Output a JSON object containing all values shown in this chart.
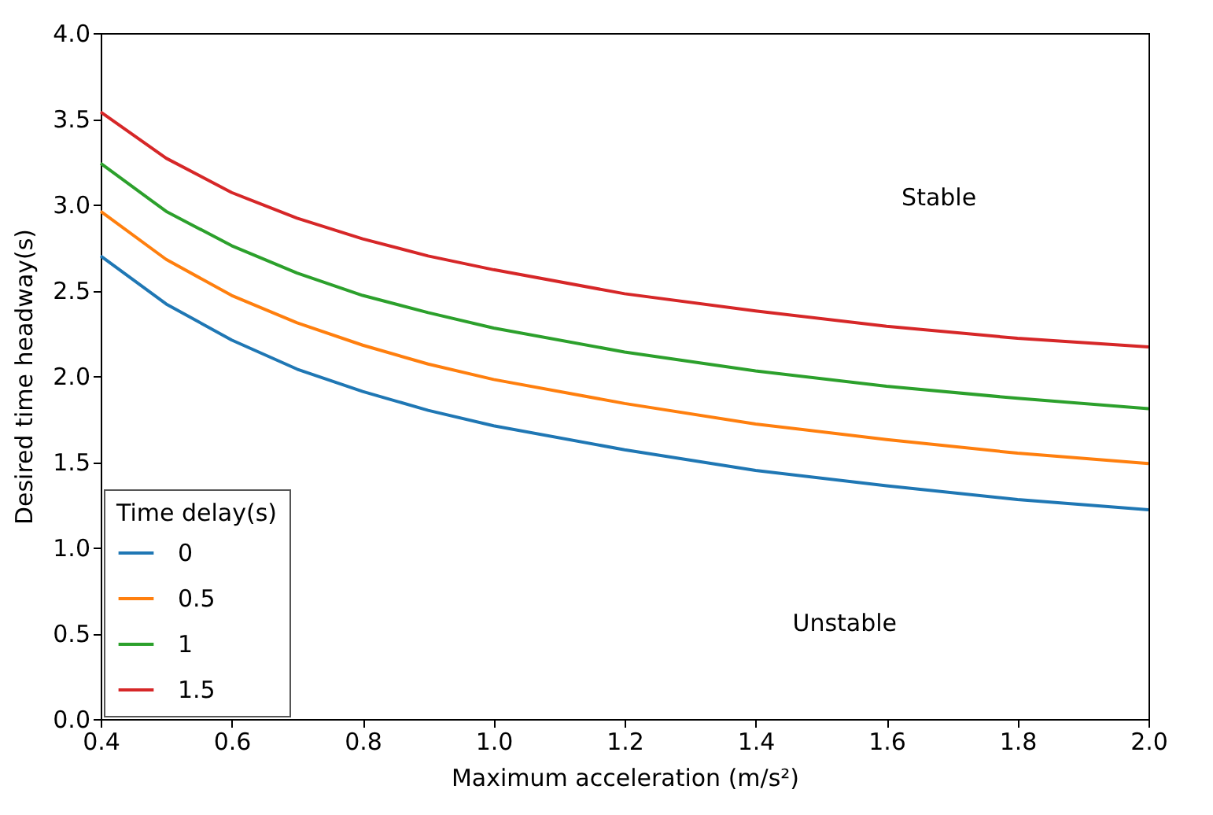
{
  "chart_data": {
    "type": "line",
    "xlabel": "Maximum acceleration (m/s²)",
    "ylabel": "Desired time headway(s)",
    "legend_title": "Time delay(s)",
    "legend": "bottom left",
    "grid": false,
    "x": [
      0.4,
      0.5,
      0.6,
      0.7,
      0.8,
      0.9,
      1.0,
      1.2,
      1.4,
      1.6,
      1.8,
      2.0
    ],
    "series": [
      {
        "name": "0",
        "color": "#1f77b4",
        "values": [
          2.7,
          2.42,
          2.21,
          2.04,
          1.91,
          1.8,
          1.71,
          1.57,
          1.45,
          1.36,
          1.28,
          1.22
        ]
      },
      {
        "name": "0.5",
        "color": "#ff7f0e",
        "values": [
          2.96,
          2.68,
          2.47,
          2.31,
          2.18,
          2.07,
          1.98,
          1.84,
          1.72,
          1.63,
          1.55,
          1.49
        ]
      },
      {
        "name": "1",
        "color": "#2ca02c",
        "values": [
          3.24,
          2.96,
          2.76,
          2.6,
          2.47,
          2.37,
          2.28,
          2.14,
          2.03,
          1.94,
          1.87,
          1.81
        ]
      },
      {
        "name": "1.5",
        "color": "#d62728",
        "values": [
          3.54,
          3.27,
          3.07,
          2.92,
          2.8,
          2.7,
          2.62,
          2.48,
          2.38,
          2.29,
          2.22,
          2.17
        ]
      }
    ],
    "xlim": [
      0.4,
      2.0
    ],
    "xticks": [
      0.4,
      0.6,
      0.8,
      {
        "value": 1,
        "label": "1.0"
      },
      1.2,
      1.4,
      1.6,
      1.8,
      {
        "value": 2,
        "label": "2.0"
      }
    ],
    "ylim": [
      0,
      4
    ],
    "yticks": [
      {
        "value": 0,
        "label": "0.0"
      },
      0.5,
      {
        "value": 1,
        "label": "1.0"
      },
      1.5,
      {
        "value": 2,
        "label": "2.0"
      },
      2.5,
      {
        "value": 3,
        "label": "3.0"
      },
      3.5,
      {
        "value": 4,
        "label": "4.0"
      }
    ],
    "annotations": [
      "Stable",
      "Unstable"
    ]
  }
}
